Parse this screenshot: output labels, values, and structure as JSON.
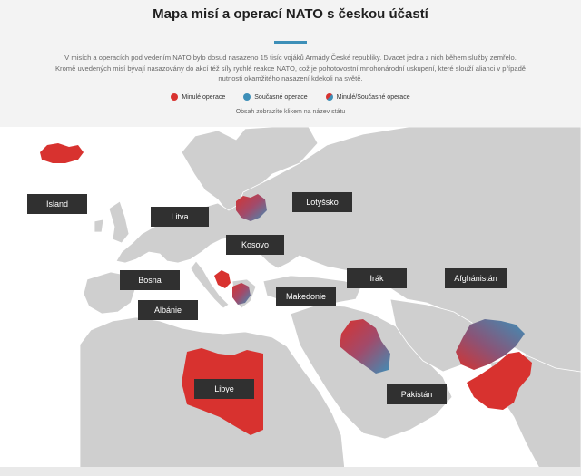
{
  "header": {
    "title": "Mapa misí a operací NATO s českou účastí",
    "intro": "V misích a operacích pod vedením NATO bylo dosud nasazeno 15 tisíc vojáků Armády České republiky. Dvacet jedna z nich během služby zemřelo. Kromě uvedených misí bývají nasazovány do akcí též síly rychlé reakce NATO, což je pohotovostní mnohonárodní uskupení, které slouží alianci v případě nutnosti okamžitého nasazení kdekoli na světě.",
    "hint": "Obsah zobrazíte klikem na název státu"
  },
  "legend": {
    "past": "Minulé operace",
    "current": "Současné operace",
    "mixed": "Minulé/Současné operace"
  },
  "colors": {
    "past": "#d8322f",
    "current": "#3d8fb8",
    "land": "#cfcfcf",
    "sea": "#ffffff",
    "label_bg": "#303030"
  },
  "countries": [
    {
      "id": "island",
      "label": "Island",
      "status": "past"
    },
    {
      "id": "litva",
      "label": "Litva",
      "status": "mixed"
    },
    {
      "id": "lotyssko",
      "label": "Lotyšsko",
      "status": "current"
    },
    {
      "id": "kosovo",
      "label": "Kosovo",
      "status": "mixed"
    },
    {
      "id": "bosna",
      "label": "Bosna",
      "status": "past"
    },
    {
      "id": "albanie",
      "label": "Albánie",
      "status": "past"
    },
    {
      "id": "makedonie",
      "label": "Makedonie",
      "status": "past"
    },
    {
      "id": "irak",
      "label": "Irák",
      "status": "mixed"
    },
    {
      "id": "afghanistan",
      "label": "Afghánistán",
      "status": "mixed"
    },
    {
      "id": "libye",
      "label": "Libye",
      "status": "past"
    },
    {
      "id": "pakistan",
      "label": "Pákistán",
      "status": "past"
    }
  ]
}
